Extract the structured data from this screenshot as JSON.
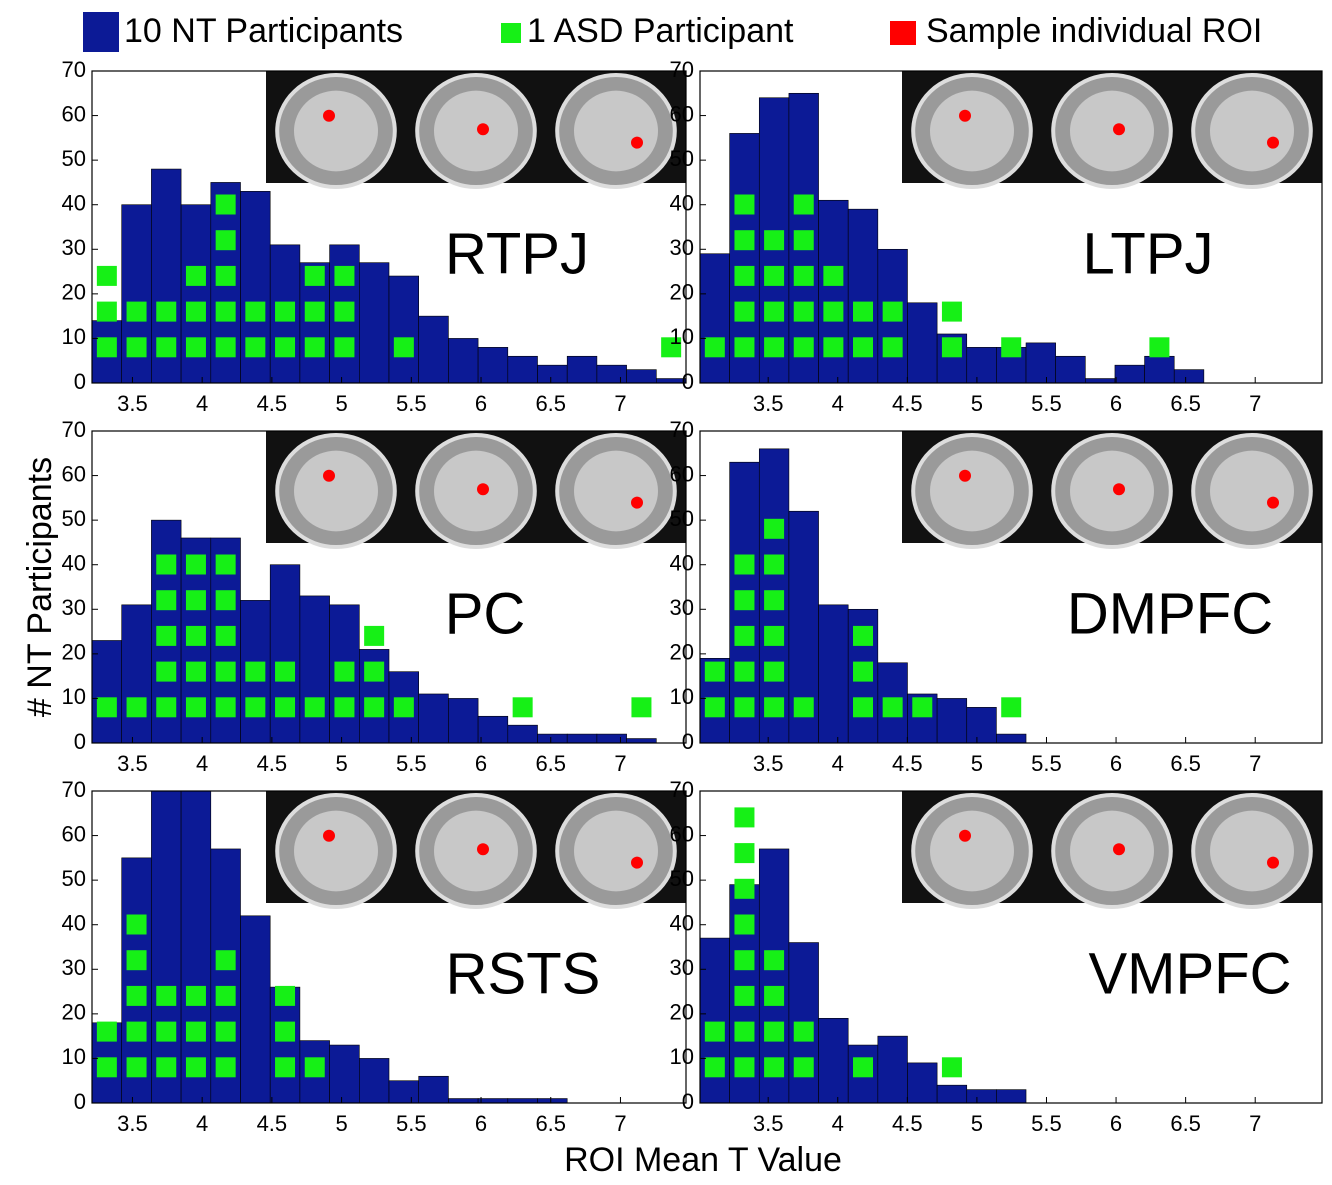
{
  "ylabel": "# NT Participants",
  "xlabel": "ROI Mean T Value",
  "legend_note": {
    "label": "Sample individual ROI",
    "color": "#ff0000"
  },
  "chart_data": [
    {
      "type": "histogram",
      "title": "RTPJ",
      "bins": [
        3.21,
        3.423,
        3.636,
        3.849,
        4.062,
        4.275,
        4.488,
        4.701,
        4.914,
        5.127,
        5.34,
        5.553,
        5.766,
        5.979,
        6.192,
        6.405,
        6.618,
        6.831,
        7.044,
        7.257,
        7.47
      ],
      "series": [
        {
          "name": "10 NT Participants",
          "color": "#0c1a96",
          "values": [
            14,
            40,
            48,
            40,
            45,
            43,
            31,
            27,
            31,
            27,
            24,
            15,
            10,
            8,
            6,
            4,
            6,
            4,
            3,
            1
          ]
        },
        {
          "name": "1 ASD Participant",
          "color": "#16f016",
          "values": [
            3,
            2,
            2,
            3,
            5,
            2,
            2,
            3,
            3,
            0,
            1,
            0,
            0,
            0,
            0,
            0,
            0,
            0,
            0,
            1
          ]
        }
      ],
      "xlim": [
        3.21,
        7.47
      ],
      "ylim": [
        0,
        70
      ],
      "xticks": [
        3.5,
        4,
        4.5,
        5,
        5.5,
        6,
        6.5,
        7
      ],
      "yticks": [
        0,
        10,
        20,
        30,
        40,
        50,
        60,
        70
      ]
    },
    {
      "type": "histogram",
      "title": "LTPJ",
      "bins": [
        3.01,
        3.223,
        3.436,
        3.649,
        3.862,
        4.075,
        4.288,
        4.501,
        4.714,
        4.927,
        5.14,
        5.353,
        5.566,
        5.779,
        5.992,
        6.205,
        6.418,
        6.631,
        6.844,
        7.057,
        7.27
      ],
      "series": [
        {
          "name": "10 NT Participants",
          "color": "#0c1a96",
          "values": [
            29,
            56,
            64,
            65,
            41,
            39,
            30,
            18,
            11,
            8,
            8,
            9,
            6,
            1,
            4,
            6,
            3,
            0,
            0,
            0
          ]
        },
        {
          "name": "1 ASD Participant",
          "color": "#16f016",
          "values": [
            1,
            5,
            4,
            5,
            3,
            2,
            2,
            0,
            2,
            0,
            1,
            0,
            0,
            0,
            0,
            1,
            0,
            0,
            0,
            0
          ]
        }
      ],
      "xlim": [
        3.01,
        7.48
      ],
      "ylim": [
        0,
        70
      ],
      "xticks": [
        3.5,
        4,
        4.5,
        5,
        5.5,
        6,
        6.5,
        7
      ],
      "yticks": [
        0,
        10,
        20,
        30,
        40,
        50,
        60,
        70
      ]
    },
    {
      "type": "histogram",
      "title": "PC",
      "bins": [
        3.21,
        3.423,
        3.636,
        3.849,
        4.062,
        4.275,
        4.488,
        4.701,
        4.914,
        5.127,
        5.34,
        5.553,
        5.766,
        5.979,
        6.192,
        6.405,
        6.618,
        6.831,
        7.044,
        7.257,
        7.47
      ],
      "series": [
        {
          "name": "10 NT Participants",
          "color": "#0c1a96",
          "values": [
            23,
            31,
            50,
            46,
            46,
            32,
            40,
            33,
            31,
            21,
            16,
            11,
            10,
            6,
            4,
            2,
            2,
            2,
            1,
            0
          ]
        },
        {
          "name": "1 ASD Participant",
          "color": "#16f016",
          "values": [
            1,
            1,
            5,
            5,
            5,
            2,
            2,
            1,
            2,
            3,
            1,
            0,
            0,
            0,
            1,
            0,
            0,
            0,
            1,
            0
          ]
        }
      ],
      "xlim": [
        3.21,
        7.47
      ],
      "ylim": [
        0,
        70
      ],
      "xticks": [
        3.5,
        4,
        4.5,
        5,
        5.5,
        6,
        6.5,
        7
      ],
      "yticks": [
        0,
        10,
        20,
        30,
        40,
        50,
        60,
        70
      ]
    },
    {
      "type": "histogram",
      "title": "DMPFC",
      "bins": [
        3.01,
        3.223,
        3.436,
        3.649,
        3.862,
        4.075,
        4.288,
        4.501,
        4.714,
        4.927,
        5.14,
        5.353,
        5.566,
        5.779,
        5.992,
        6.205,
        6.418,
        6.631,
        6.844,
        7.057,
        7.27
      ],
      "series": [
        {
          "name": "10 NT Participants",
          "color": "#0c1a96",
          "values": [
            19,
            63,
            66,
            52,
            31,
            30,
            18,
            11,
            10,
            8,
            2,
            0,
            0,
            0,
            0,
            0,
            0,
            0,
            0,
            0
          ]
        },
        {
          "name": "1 ASD Participant",
          "color": "#16f016",
          "values": [
            2,
            5,
            6,
            1,
            0,
            3,
            1,
            1,
            0,
            0,
            1,
            0,
            0,
            0,
            0,
            0,
            0,
            0,
            0,
            0
          ]
        }
      ],
      "xlim": [
        3.01,
        7.48
      ],
      "ylim": [
        0,
        70
      ],
      "xticks": [
        3.5,
        4,
        4.5,
        5,
        5.5,
        6,
        6.5,
        7
      ],
      "yticks": [
        0,
        10,
        20,
        30,
        40,
        50,
        60,
        70
      ]
    },
    {
      "type": "histogram",
      "title": "RSTS",
      "bins": [
        3.21,
        3.423,
        3.636,
        3.849,
        4.062,
        4.275,
        4.488,
        4.701,
        4.914,
        5.127,
        5.34,
        5.553,
        5.766,
        5.979,
        6.192,
        6.405,
        6.618,
        6.831,
        7.044,
        7.257,
        7.47
      ],
      "series": [
        {
          "name": "10 NT Participants",
          "color": "#0c1a96",
          "values": [
            18,
            55,
            70,
            70,
            57,
            42,
            26,
            14,
            13,
            10,
            5,
            6,
            1,
            1,
            1,
            1,
            0,
            0,
            0,
            0
          ]
        },
        {
          "name": "1 ASD Participant",
          "color": "#16f016",
          "values": [
            2,
            5,
            3,
            3,
            4,
            0,
            3,
            1,
            0,
            0,
            0,
            0,
            0,
            0,
            0,
            0,
            0,
            0,
            0,
            0
          ]
        }
      ],
      "xlim": [
        3.21,
        7.47
      ],
      "ylim": [
        0,
        70
      ],
      "xticks": [
        3.5,
        4,
        4.5,
        5,
        5.5,
        6,
        6.5,
        7
      ],
      "yticks": [
        0,
        10,
        20,
        30,
        40,
        50,
        60,
        70
      ]
    },
    {
      "type": "histogram",
      "title": "VMPFC",
      "bins": [
        3.01,
        3.223,
        3.436,
        3.649,
        3.862,
        4.075,
        4.288,
        4.501,
        4.714,
        4.927,
        5.14,
        5.353,
        5.566,
        5.779,
        5.992,
        6.205,
        6.418,
        6.631,
        6.844,
        7.057,
        7.27
      ],
      "series": [
        {
          "name": "10 NT Participants",
          "color": "#0c1a96",
          "values": [
            37,
            49,
            57,
            36,
            19,
            13,
            15,
            9,
            4,
            3,
            3,
            0,
            0,
            0,
            0,
            0,
            0,
            0,
            0,
            0
          ]
        },
        {
          "name": "1 ASD Participant",
          "color": "#16f016",
          "values": [
            2,
            8,
            4,
            2,
            0,
            1,
            0,
            0,
            1,
            0,
            0,
            0,
            0,
            0,
            0,
            0,
            0,
            0,
            0,
            0
          ]
        }
      ],
      "xlim": [
        3.01,
        7.48
      ],
      "ylim": [
        0,
        70
      ],
      "xticks": [
        3.5,
        4,
        4.5,
        5,
        5.5,
        6,
        6.5,
        7
      ],
      "yticks": [
        0,
        10,
        20,
        30,
        40,
        50,
        60,
        70
      ]
    }
  ]
}
